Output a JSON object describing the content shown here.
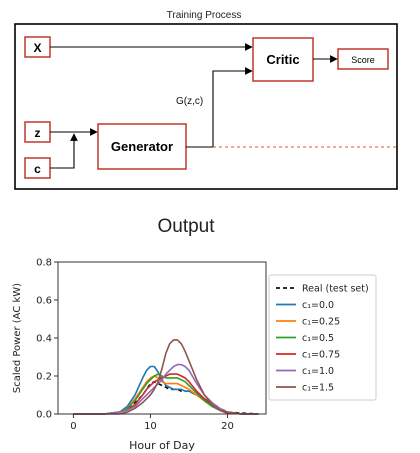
{
  "diagram": {
    "title": "Training Process",
    "inputs": {
      "x": "X",
      "z": "z",
      "c": "c"
    },
    "generator": "Generator",
    "critic": "Critic",
    "score": "Score",
    "gen_output_label": "G(z,c)"
  },
  "output_title": "Output",
  "chart_data": {
    "type": "line",
    "xlabel": "Hour of Day",
    "ylabel": "Scaled Power (AC kW)",
    "xlim": [
      -2,
      25
    ],
    "ylim": [
      0,
      0.8
    ],
    "xticks": [
      0,
      10,
      20
    ],
    "yticks": [
      0.0,
      0.2,
      0.4,
      0.6,
      0.8
    ],
    "ytick_labels": [
      "0.0",
      "0.2",
      "0.4",
      "0.6",
      "0.8"
    ],
    "legend_position": "right",
    "x": [
      0,
      2,
      4,
      6,
      7,
      8,
      9,
      9.5,
      10,
      10.5,
      11,
      11.5,
      12,
      12.5,
      13,
      13.5,
      14,
      14.5,
      15,
      16,
      17,
      18,
      19,
      20,
      22,
      24
    ],
    "series": [
      {
        "name": "Real (test set)",
        "color": "#111111",
        "dash": true,
        "values": [
          0,
          0,
          0,
          0.01,
          0.03,
          0.06,
          0.1,
          0.13,
          0.16,
          0.17,
          0.16,
          0.15,
          0.14,
          0.13,
          0.13,
          0.13,
          0.12,
          0.12,
          0.12,
          0.1,
          0.08,
          0.05,
          0.03,
          0.01,
          0.005,
          0
        ]
      },
      {
        "name": "c₁=0.0",
        "color": "#1f77b4",
        "values": [
          0,
          0,
          0,
          0.01,
          0.04,
          0.1,
          0.19,
          0.23,
          0.25,
          0.25,
          0.22,
          0.18,
          0.15,
          0.14,
          0.13,
          0.13,
          0.13,
          0.12,
          0.12,
          0.1,
          0.07,
          0.04,
          0.02,
          0.005,
          0,
          0
        ]
      },
      {
        "name": "c₁=0.25",
        "color": "#ff7f0e",
        "values": [
          0,
          0,
          0,
          0.01,
          0.03,
          0.08,
          0.14,
          0.17,
          0.19,
          0.2,
          0.19,
          0.17,
          0.16,
          0.16,
          0.16,
          0.16,
          0.15,
          0.14,
          0.13,
          0.1,
          0.07,
          0.04,
          0.02,
          0.005,
          0,
          0
        ]
      },
      {
        "name": "c₁=0.5",
        "color": "#2ca02c",
        "values": [
          0,
          0,
          0,
          0.01,
          0.03,
          0.07,
          0.13,
          0.16,
          0.18,
          0.2,
          0.21,
          0.2,
          0.19,
          0.19,
          0.19,
          0.19,
          0.18,
          0.17,
          0.15,
          0.11,
          0.07,
          0.04,
          0.02,
          0.005,
          0,
          0
        ]
      },
      {
        "name": "c₁=0.75",
        "color": "#d62728",
        "values": [
          0,
          0,
          0,
          0.01,
          0.02,
          0.05,
          0.1,
          0.13,
          0.15,
          0.17,
          0.18,
          0.19,
          0.2,
          0.21,
          0.21,
          0.21,
          0.2,
          0.19,
          0.17,
          0.12,
          0.08,
          0.05,
          0.02,
          0.005,
          0,
          0
        ]
      },
      {
        "name": "c₁=1.0",
        "color": "#9467bd",
        "values": [
          0,
          0,
          0,
          0.01,
          0.02,
          0.04,
          0.08,
          0.1,
          0.12,
          0.14,
          0.16,
          0.18,
          0.21,
          0.23,
          0.25,
          0.26,
          0.26,
          0.25,
          0.23,
          0.16,
          0.1,
          0.06,
          0.03,
          0.01,
          0,
          0
        ]
      },
      {
        "name": "c₁=1.5",
        "color": "#8c564b",
        "values": [
          0,
          0,
          0,
          0,
          0.01,
          0.03,
          0.06,
          0.08,
          0.1,
          0.13,
          0.17,
          0.24,
          0.32,
          0.37,
          0.39,
          0.39,
          0.37,
          0.33,
          0.28,
          0.18,
          0.1,
          0.05,
          0.02,
          0.01,
          0,
          0
        ]
      }
    ]
  }
}
